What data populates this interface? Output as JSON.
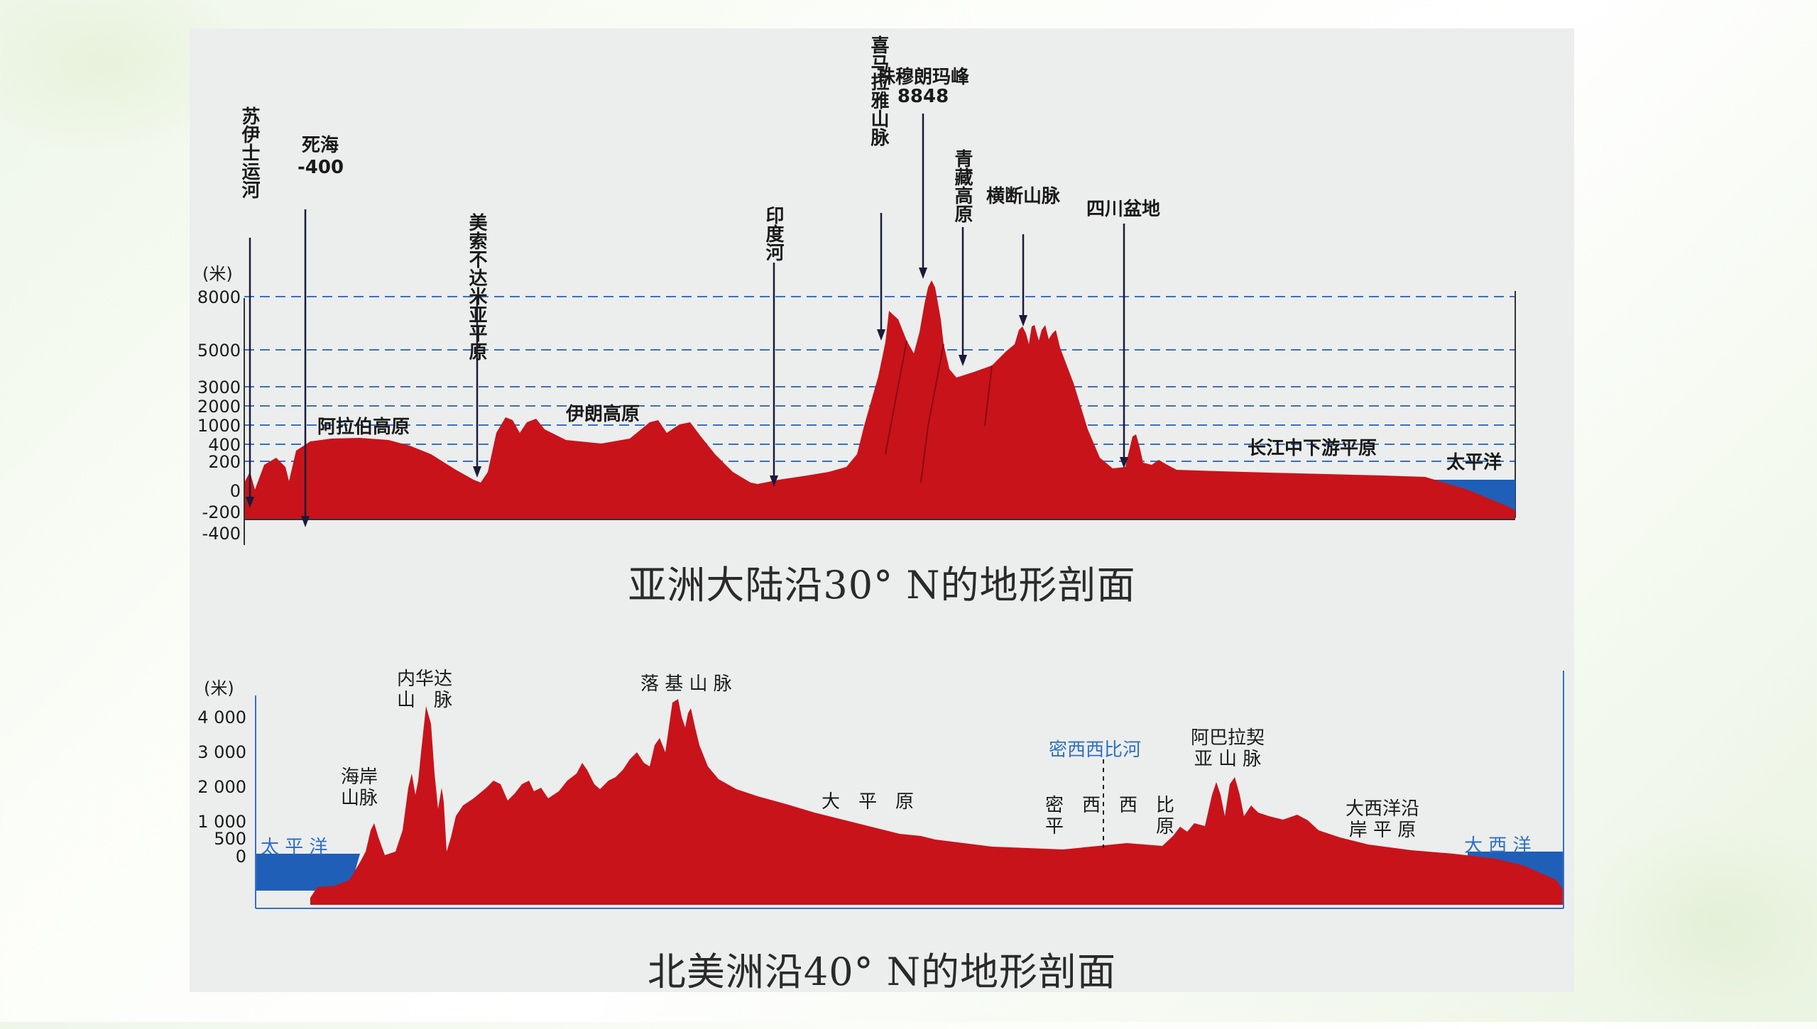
{
  "asia": {
    "caption": "亚洲大陆沿30° N的地形剖面",
    "unit": "(米)",
    "ticks": [
      "8000",
      "5000",
      "3000",
      "2000",
      "1000",
      "400",
      "200",
      "0",
      "-200",
      "-400"
    ],
    "labels": {
      "suez": "苏伊士运河",
      "dead_sea": "死海",
      "dead_sea_value": "-400",
      "mesopotamia": "美索不达米亚平原",
      "indus": "印度河",
      "everest": "珠穆朗玛峰",
      "everest_value": "8848",
      "himalaya": "喜马拉雅山脉",
      "qinghai_tibet": "青藏高原",
      "hengduan": "横断山脉",
      "sichuan": "四川盆地",
      "arabian": "阿拉伯高原",
      "iranian": "伊朗高原",
      "yangtze": "长江中下游平原",
      "pacific": "太平洋"
    },
    "colors": {
      "land": "#c8131b",
      "ocean": "#1f5fb8"
    }
  },
  "namerica": {
    "caption": "北美洲沿40° N的地形剖面",
    "unit": "(米)",
    "ticks": [
      "4 000",
      "3 000",
      "2 000",
      "1 000",
      "500",
      "0"
    ],
    "labels": {
      "nevada": "内华达山脉",
      "rockies": "落 基 山 脉",
      "coast_range": "海岸山脉",
      "pacific": "太 平 洋",
      "great_plains": "大　平　原",
      "mississippi_river": "密西西比河",
      "mississippi_plain": "密西西比平原",
      "appalachian": "阿巴拉契亚山脉",
      "atlantic_plain": "大西洋沿岸平原",
      "atlantic": "大 西 洋"
    },
    "colors": {
      "land": "#c8131b",
      "ocean": "#1f5fb8"
    }
  }
}
